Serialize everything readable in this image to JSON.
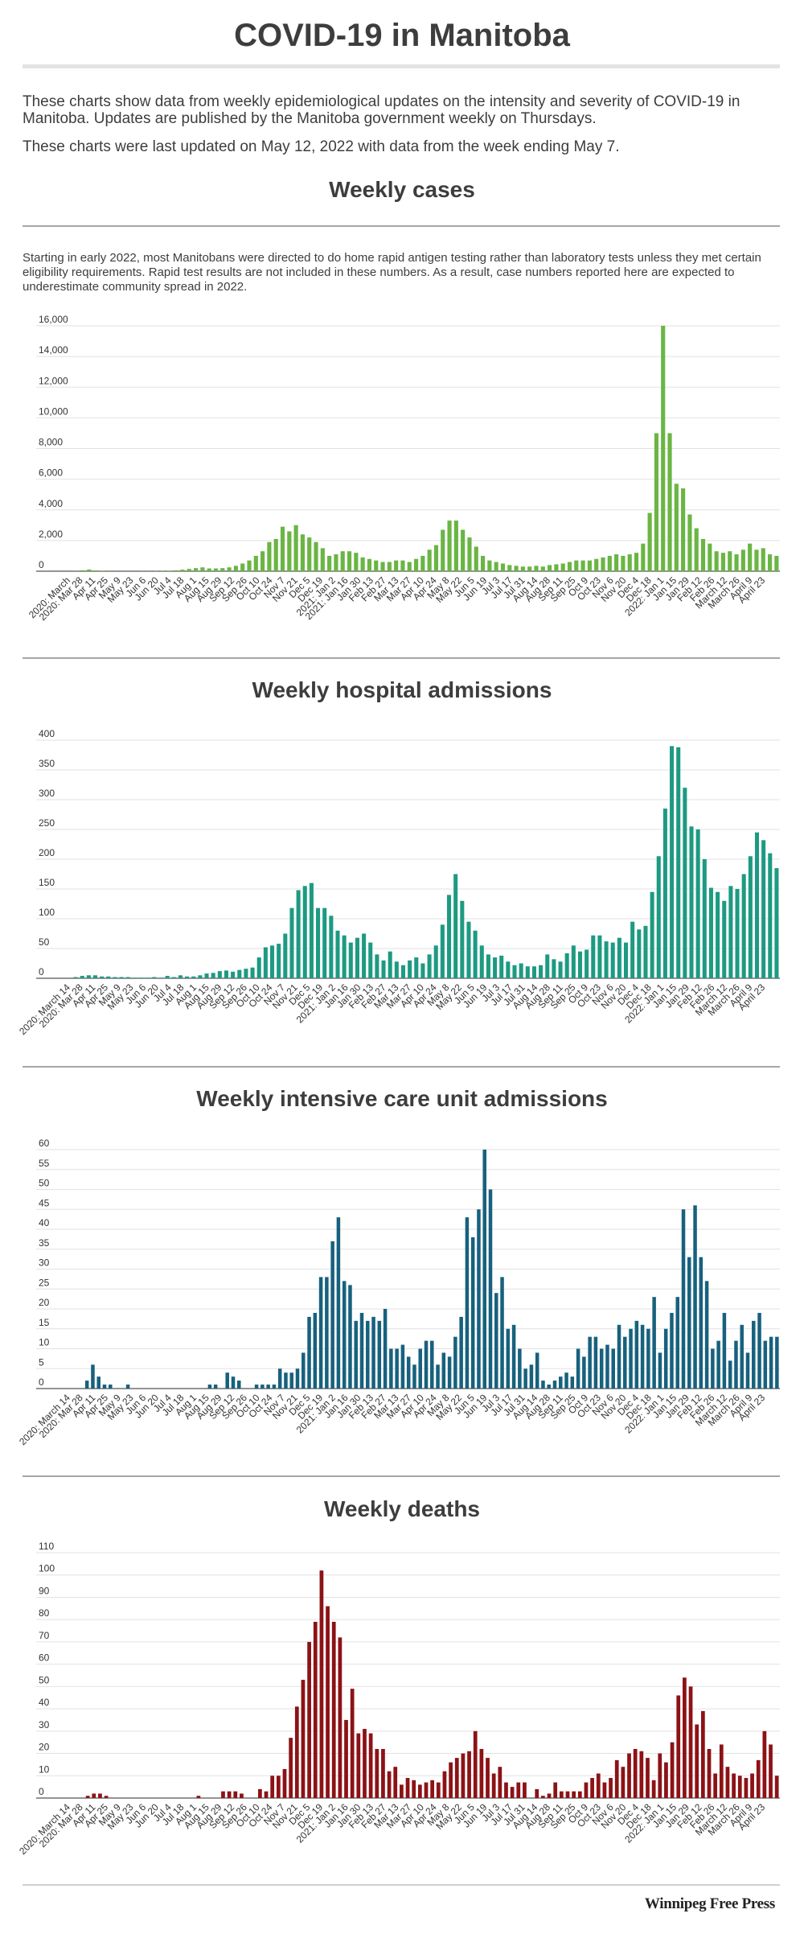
{
  "page": {
    "title": "COVID-19 in Manitoba",
    "intro_1": "These charts show data from weekly epidemiological updates on the intensity and severity of COVID-19 in Manitoba. Updates are published by the Manitoba government weekly on Thursdays.",
    "intro_2": "These charts were last updated on May 12, 2022 with data from the week ending May 7.",
    "cases_note": "Starting in early 2022, most Manitobans were directed to do home rapid antigen testing rather than laboratory tests unless they met certain eligibility requirements. Rapid test results are not included in these numbers. As a result, case numbers reported here are expected to underestimate community spread in 2022.",
    "credit": "Winnipeg Free Press"
  },
  "chart_data": [
    {
      "type": "bar",
      "title": "Weekly cases",
      "color": "#6ab544",
      "ylim": [
        0,
        16000
      ],
      "yticks": [
        0,
        2000,
        4000,
        6000,
        8000,
        10000,
        12000,
        14000,
        16000
      ],
      "ytick_labels": [
        "0",
        "2,000",
        "4,000",
        "6,000",
        "8,000",
        "10,000",
        "12,000",
        "14,000",
        "16,000"
      ],
      "tick_labels": [
        "2020: March",
        "2020: Mar 28",
        "Apr 11",
        "Apr 25",
        "May 9",
        "May 23",
        "Jun 6",
        "Jun 20",
        "Jul 4",
        "Jul 18",
        "Aug 1",
        "Aug 15",
        "Aug 29",
        "Sep 12",
        "Sep 26",
        "Oct 10",
        "Oct 24",
        "Nov 7",
        "Nov 21",
        "Dec 5",
        "Dec 19",
        "2021: Jan 2",
        "2021: Jan 16",
        "Jan 30",
        "Feb 13",
        "Feb 27",
        "Mar 13",
        "Mar 27",
        "Apr 10",
        "Apr 24",
        "May 8",
        "May 22",
        "Jun 5",
        "Jun 19",
        "Jul 3",
        "Jul 17",
        "Jul 31",
        "Aug 14",
        "Aug 28",
        "Sep 11",
        "Sep 25",
        "Oct 9",
        "Oct 23",
        "Nov 6",
        "Nov 20",
        "Dec 4",
        "Dec 18",
        "2022: Jan 1",
        "Jan 15",
        "Jan 29",
        "Feb 12",
        "Feb 26",
        "March 12",
        "March 26",
        "April 9",
        "April 23"
      ],
      "values": [
        5,
        60,
        110,
        50,
        20,
        10,
        5,
        5,
        5,
        5,
        10,
        10,
        15,
        20,
        30,
        60,
        100,
        150,
        200,
        250,
        180,
        180,
        200,
        250,
        350,
        500,
        700,
        1000,
        1300,
        1900,
        2100,
        2900,
        2600,
        3000,
        2400,
        2200,
        1900,
        1500,
        1000,
        1100,
        1300,
        1300,
        1200,
        900,
        800,
        700,
        600,
        600,
        700,
        700,
        600,
        800,
        1000,
        1400,
        1700,
        2700,
        3300,
        3300,
        2700,
        2200,
        1600,
        1000,
        700,
        600,
        500,
        400,
        350,
        300,
        300,
        350,
        300,
        400,
        450,
        500,
        600,
        700,
        700,
        700,
        800,
        900,
        1000,
        1100,
        1000,
        1100,
        1200,
        1800,
        3800,
        9000,
        16000,
        9000,
        5700,
        5400,
        3700,
        2800,
        2100,
        1800,
        1300,
        1200,
        1300,
        1100,
        1400,
        1800,
        1400,
        1500,
        1100,
        1000
      ]
    },
    {
      "type": "bar",
      "title": "Weekly hospital admissions",
      "color": "#1d9a82",
      "ylim": [
        0,
        400
      ],
      "yticks": [
        0,
        50,
        100,
        150,
        200,
        250,
        300,
        350,
        400
      ],
      "ytick_labels": [
        "0",
        "50",
        "100",
        "150",
        "200",
        "250",
        "300",
        "350",
        "400"
      ],
      "tick_labels": [
        "2020: March 14",
        "2020: Mar 28",
        "Apr 11",
        "Apr 25",
        "May 9",
        "May 23",
        "Jun 6",
        "Jun 20",
        "Jul 4",
        "Jul 18",
        "Aug 1",
        "Aug 15",
        "Aug 29",
        "Sep 12",
        "Sep 26",
        "Oct 10",
        "Oct 24",
        "Nov 7",
        "Nov 21",
        "Dec 5",
        "Dec 19",
        "2021: Jan 2",
        "Jan 16",
        "Jan 30",
        "Feb 13",
        "Feb 27",
        "Mar 13",
        "Mar 27",
        "Apr 10",
        "Apr 24",
        "May 8",
        "May 22",
        "Jun 5",
        "Jun 19",
        "Jul 3",
        "Jul 17",
        "Jul 31",
        "Aug 14",
        "Aug 28",
        "Sep 11",
        "Sep 25",
        "Oct 9",
        "Oct 23",
        "Nov 6",
        "Nov 20",
        "Dec 4",
        "Dec 18",
        "2022: Jan 1",
        "Jan 15",
        "Jan 29",
        "Feb 12",
        "Feb 26",
        "March 12",
        "March 26",
        "April 9",
        "April 23"
      ],
      "values": [
        2,
        4,
        5,
        5,
        3,
        3,
        2,
        2,
        2,
        1,
        1,
        1,
        2,
        1,
        4,
        2,
        5,
        3,
        3,
        5,
        8,
        9,
        12,
        13,
        11,
        14,
        16,
        18,
        35,
        52,
        55,
        58,
        75,
        118,
        148,
        155,
        160,
        118,
        118,
        105,
        80,
        72,
        60,
        68,
        75,
        60,
        40,
        30,
        45,
        28,
        22,
        30,
        35,
        25,
        40,
        55,
        90,
        140,
        175,
        130,
        95,
        80,
        55,
        40,
        35,
        38,
        28,
        22,
        25,
        20,
        20,
        22,
        40,
        32,
        28,
        42,
        55,
        45,
        48,
        72,
        72,
        62,
        60,
        68,
        60,
        95,
        82,
        88,
        145,
        205,
        285,
        390,
        388,
        320,
        255,
        250,
        200,
        152,
        145,
        130,
        155,
        150,
        175,
        205,
        245,
        232,
        210,
        185
      ]
    },
    {
      "type": "bar",
      "title": "Weekly intensive care unit admissions",
      "color": "#17617e",
      "ylim": [
        0,
        60
      ],
      "yticks": [
        0,
        5,
        10,
        15,
        20,
        25,
        30,
        35,
        40,
        45,
        50,
        55,
        60
      ],
      "ytick_labels": [
        "0",
        "5",
        "10",
        "15",
        "20",
        "25",
        "30",
        "35",
        "40",
        "45",
        "50",
        "55",
        "60"
      ],
      "tick_labels": [
        "2020: March 14",
        "2020: Mar 28",
        "Apr 11",
        "Apr 25",
        "May 9",
        "May 23",
        "Jun 6",
        "Jun 20",
        "Jul 4",
        "Jul 18",
        "Aug 1",
        "Aug 15",
        "Aug 29",
        "Sep 12",
        "Sep 26",
        "Oct 10",
        "Oct 24",
        "Nov 7",
        "Nov 21",
        "Dec 5",
        "Dec 19",
        "2021: Jan 2",
        "Jan 16",
        "Jan 30",
        "Feb 13",
        "Feb 27",
        "Mar 13",
        "Mar 27",
        "Apr 10",
        "Apr 24",
        "May 8",
        "May 22",
        "Jun 5",
        "Jun 19",
        "Jul 3",
        "Jul 17",
        "Jul 31",
        "Aug 14",
        "Aug 28",
        "Sep 11",
        "Sep 25",
        "Oct 9",
        "Oct 23",
        "Nov 6",
        "Nov 20",
        "Dec 4",
        "Dec 18",
        "2022: Jan 1",
        "Jan 15",
        "Jan 29",
        "Feb 12",
        "Feb 26",
        "March 12",
        "March 26",
        "April 9",
        "April 23"
      ],
      "values": [
        0,
        0,
        2,
        6,
        3,
        1,
        1,
        0,
        0,
        1,
        0,
        0,
        0,
        0,
        0,
        0,
        0,
        0,
        0,
        0,
        0,
        0,
        0,
        1,
        1,
        0,
        4,
        3,
        2,
        0,
        0,
        1,
        1,
        1,
        1,
        5,
        4,
        4,
        5,
        9,
        18,
        19,
        28,
        28,
        37,
        43,
        27,
        26,
        17,
        19,
        17,
        18,
        17,
        20,
        10,
        10,
        11,
        8,
        6,
        10,
        12,
        12,
        6,
        9,
        8,
        13,
        18,
        43,
        38,
        45,
        60,
        50,
        24,
        28,
        15,
        16,
        10,
        5,
        6,
        9,
        2,
        1,
        2,
        3,
        4,
        3,
        10,
        8,
        13,
        13,
        10,
        11,
        10,
        16,
        13,
        15,
        17,
        16,
        15,
        23,
        9,
        15,
        19,
        23,
        45,
        33,
        46,
        33,
        27,
        10,
        12,
        19,
        7,
        12,
        16,
        9,
        17,
        19,
        12,
        13,
        13
      ]
    },
    {
      "type": "bar",
      "title": "Weekly deaths",
      "color": "#8c1216",
      "ylim": [
        0,
        110
      ],
      "yticks": [
        0,
        10,
        20,
        30,
        40,
        50,
        60,
        70,
        80,
        90,
        100,
        110
      ],
      "ytick_labels": [
        "0",
        "10",
        "20",
        "30",
        "40",
        "50",
        "60",
        "70",
        "80",
        "90",
        "100",
        "110"
      ],
      "tick_labels": [
        "2020: March 14",
        "2020: Mar 28",
        "Apr 11",
        "Apr 25",
        "May 9",
        "May 23",
        "Jun 6",
        "Jun 20",
        "Jul 4",
        "Jul 18",
        "Aug 1",
        "Aug 15",
        "Aug 29",
        "Sep 12",
        "Sep 26",
        "Oct 10",
        "Oct 24",
        "Nov 7",
        "Nov 21",
        "Dec 5",
        "Dec 19",
        "2021: Jan 2",
        "Jan 16",
        "Jan 30",
        "Feb 13",
        "Feb 27",
        "Mar 13",
        "Mar 27",
        "Apr 10",
        "Apr 24",
        "May 8",
        "May 22",
        "Jun 5",
        "Jun 19",
        "Jul 3",
        "Jul 17",
        "Jul 31",
        "Aug 14",
        "Aug 28",
        "Sep 11",
        "Sep 25",
        "Oct 9",
        "Oct 23",
        "Nov 6",
        "Nov 20",
        "Dec 4",
        "Dec 18",
        "2022: Jan 1",
        "Jan 15",
        "Jan 29",
        "Feb 12",
        "Feb 26",
        "March 12",
        "March 26",
        "April 9",
        "April 23"
      ],
      "values": [
        0,
        0,
        1,
        2,
        2,
        1,
        0,
        0,
        0,
        0,
        0,
        0,
        0,
        0,
        0,
        0,
        0,
        0,
        0,
        0,
        1,
        0,
        0,
        0,
        3,
        3,
        3,
        2,
        0,
        0,
        4,
        3,
        10,
        10,
        13,
        27,
        41,
        53,
        70,
        79,
        102,
        86,
        79,
        72,
        35,
        49,
        29,
        31,
        29,
        22,
        22,
        12,
        14,
        6,
        9,
        8,
        6,
        7,
        8,
        7,
        12,
        16,
        18,
        20,
        21,
        30,
        22,
        18,
        11,
        14,
        7,
        5,
        7,
        7,
        0,
        4,
        1,
        2,
        7,
        3,
        3,
        3,
        3,
        7,
        9,
        11,
        7,
        9,
        17,
        14,
        20,
        22,
        21,
        18,
        8,
        20,
        16,
        25,
        46,
        54,
        50,
        33,
        39,
        22,
        11,
        24,
        14,
        11,
        10,
        9,
        11,
        17,
        30,
        24,
        10
      ]
    }
  ]
}
